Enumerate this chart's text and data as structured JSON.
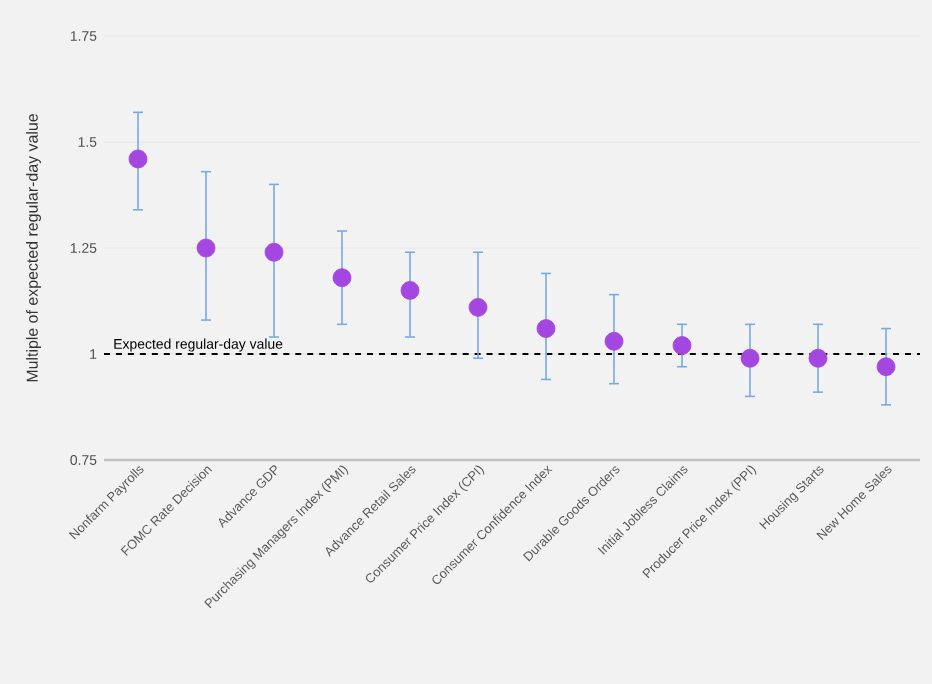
{
  "chart_data": {
    "type": "scatter",
    "ylabel": "Multiple of expected regular-day value",
    "categories": [
      "Nonfarm Payrolls",
      "FOMC Rate Decision",
      "Advance GDP",
      "Purchasing Managers Index (PMI)",
      "Advance Retail Sales",
      "Consumer Price Index (CPI)",
      "Consumer Confidence Index",
      "Durable Goods Orders",
      "Initial Jobless Claims",
      "Producer Price Index (PPI)",
      "Housing Starts",
      "New Home Sales"
    ],
    "values": [
      1.46,
      1.25,
      1.24,
      1.18,
      1.15,
      1.11,
      1.06,
      1.03,
      1.02,
      0.99,
      0.99,
      0.97
    ],
    "errors": [
      [
        1.34,
        1.57
      ],
      [
        1.08,
        1.43
      ],
      [
        1.04,
        1.4
      ],
      [
        1.07,
        1.29
      ],
      [
        1.04,
        1.24
      ],
      [
        0.99,
        1.24
      ],
      [
        0.94,
        1.19
      ],
      [
        0.93,
        1.14
      ],
      [
        0.97,
        1.07
      ],
      [
        0.9,
        1.07
      ],
      [
        0.91,
        1.07
      ],
      [
        0.88,
        1.06
      ]
    ],
    "color": "#a347e0",
    "ylim": [
      0.75,
      1.75
    ],
    "yticks": [
      0.75,
      1,
      1.25,
      1.5,
      1.75
    ],
    "grid": "y",
    "ref_lines": [
      {
        "axis": "y",
        "value": 1,
        "label": "Expected regular-day value",
        "color": "#000000",
        "line_style": "dashed"
      }
    ]
  }
}
